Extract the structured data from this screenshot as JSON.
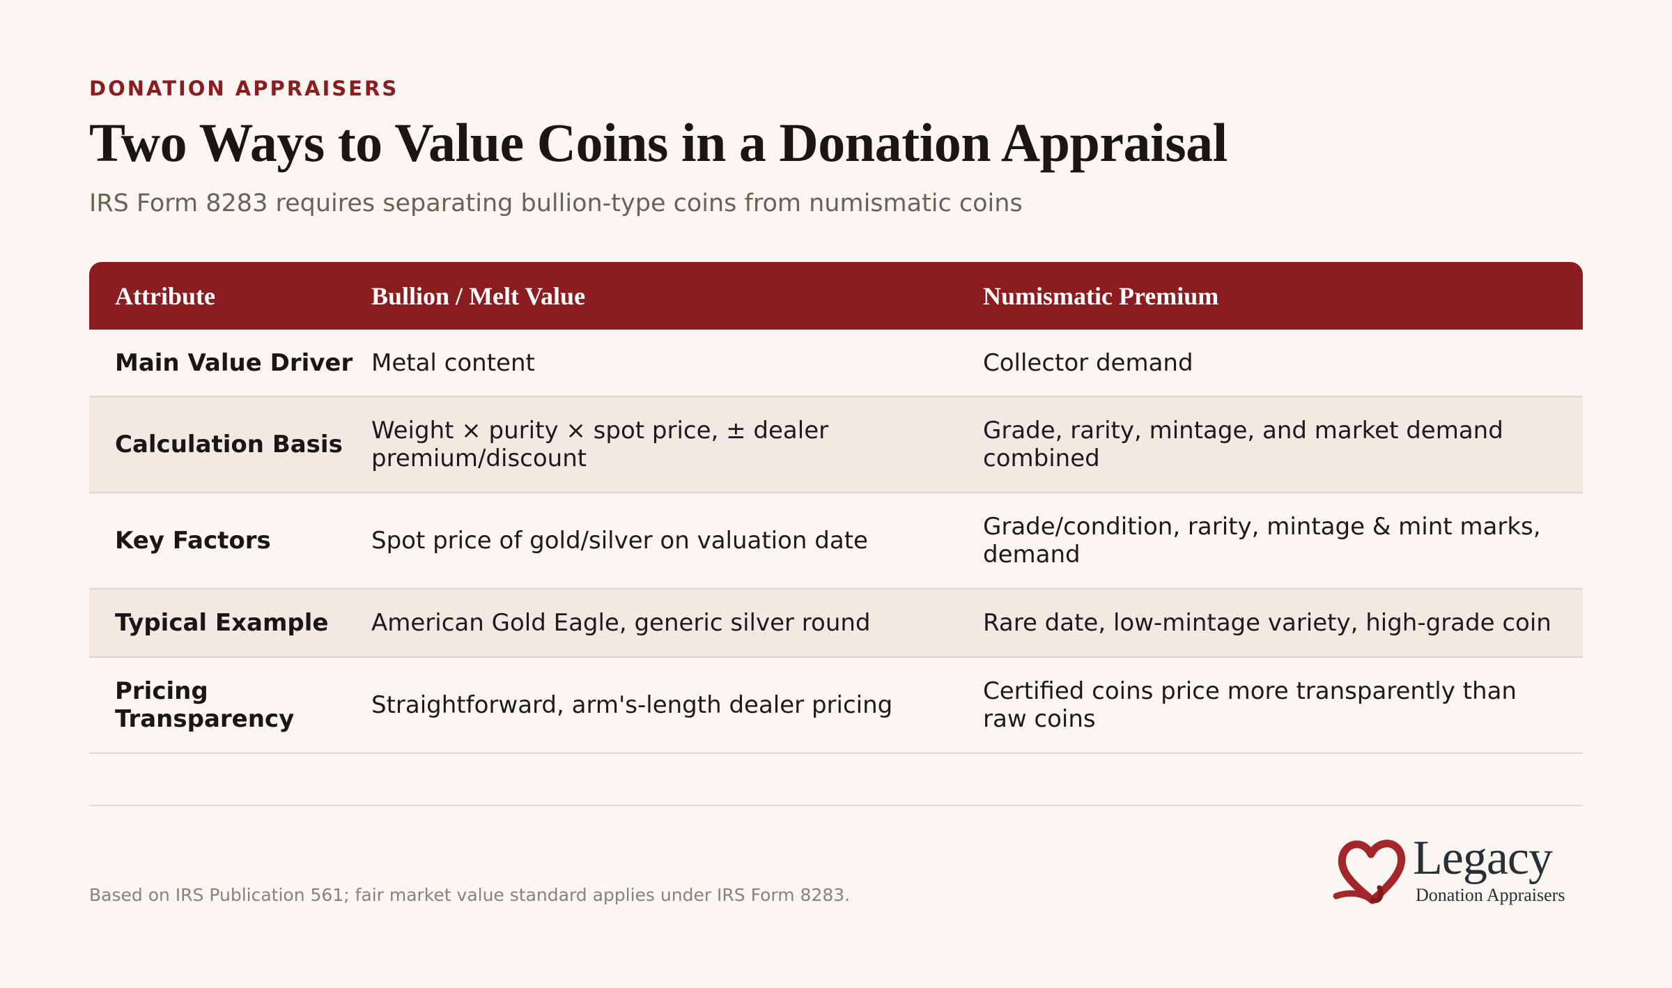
{
  "header": {
    "eyebrow": "DONATION APPRAISERS",
    "title": "Two Ways to Value Coins in a Donation Appraisal",
    "subtitle": "IRS Form 8283 requires separating bullion-type coins from numismatic coins"
  },
  "table": {
    "columns": [
      "Attribute",
      "Bullion / Melt Value",
      "Numismatic Premium"
    ],
    "rows": [
      {
        "attribute": "Main Value Driver",
        "bullion": "Metal content",
        "numismatic": "Collector demand"
      },
      {
        "attribute": "Calculation Basis",
        "bullion": "Weight × purity × spot price, ± dealer premium/discount",
        "numismatic": "Grade, rarity, mintage, and market demand combined"
      },
      {
        "attribute": "Key Factors",
        "bullion": "Spot price of gold/silver on valuation date",
        "numismatic": "Grade/condition, rarity, mintage & mint marks, demand"
      },
      {
        "attribute": "Typical Example",
        "bullion": "American Gold Eagle, generic silver round",
        "numismatic": "Rare date, low-mintage variety, high-grade coin"
      },
      {
        "attribute": "Pricing Transparency",
        "bullion": "Straightforward, arm's-length dealer pricing",
        "numismatic": "Certified coins price more transparently than raw coins"
      }
    ]
  },
  "footer": {
    "note": "Based on IRS Publication 561; fair market value standard applies under IRS Form 8283.",
    "logo_name": "Legacy",
    "logo_tagline": "Donation Appraisers",
    "logo_icon": "heart-ribbon-icon"
  },
  "colors": {
    "accent": "#8b1c1f",
    "background": "#f9f5f0",
    "row_alt": "#f3e9e4",
    "text": "#1a1613"
  }
}
